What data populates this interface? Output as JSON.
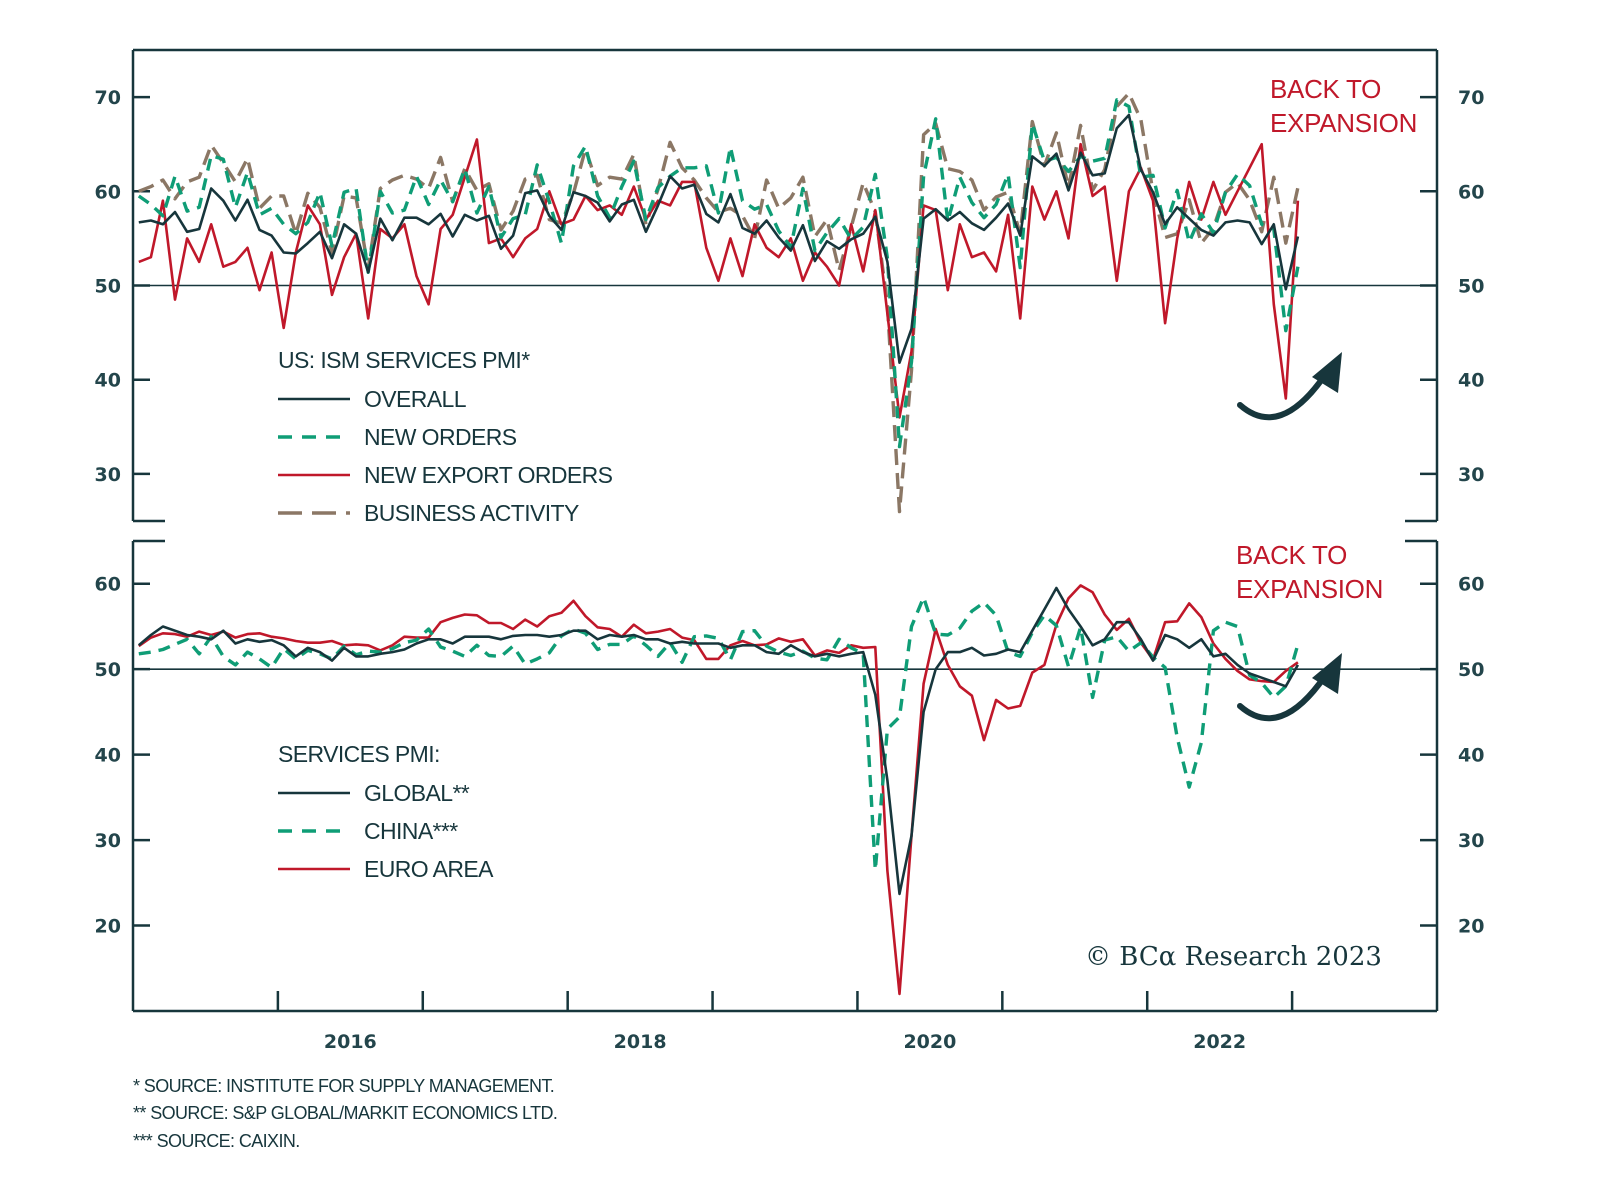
{
  "dates": [
    "2015-01",
    "2015-02",
    "2015-03",
    "2015-04",
    "2015-05",
    "2015-06",
    "2015-07",
    "2015-08",
    "2015-09",
    "2015-10",
    "2015-11",
    "2015-12",
    "2016-01",
    "2016-02",
    "2016-03",
    "2016-04",
    "2016-05",
    "2016-06",
    "2016-07",
    "2016-08",
    "2016-09",
    "2016-10",
    "2016-11",
    "2016-12",
    "2017-01",
    "2017-02",
    "2017-03",
    "2017-04",
    "2017-05",
    "2017-06",
    "2017-07",
    "2017-08",
    "2017-09",
    "2017-10",
    "2017-11",
    "2017-12",
    "2018-01",
    "2018-02",
    "2018-03",
    "2018-04",
    "2018-05",
    "2018-06",
    "2018-07",
    "2018-08",
    "2018-09",
    "2018-10",
    "2018-11",
    "2018-12",
    "2019-01",
    "2019-02",
    "2019-03",
    "2019-04",
    "2019-05",
    "2019-06",
    "2019-07",
    "2019-08",
    "2019-09",
    "2019-10",
    "2019-11",
    "2019-12",
    "2020-01",
    "2020-02",
    "2020-03",
    "2020-04",
    "2020-05",
    "2020-06",
    "2020-07",
    "2020-08",
    "2020-09",
    "2020-10",
    "2020-11",
    "2020-12",
    "2021-01",
    "2021-02",
    "2021-03",
    "2021-04",
    "2021-05",
    "2021-06",
    "2021-07",
    "2021-08",
    "2021-09",
    "2021-10",
    "2021-11",
    "2021-12",
    "2022-01",
    "2022-02",
    "2022-03",
    "2022-04",
    "2022-05",
    "2022-06",
    "2022-07",
    "2022-08",
    "2022-09",
    "2022-10",
    "2022-11",
    "2022-12",
    "2023-01"
  ],
  "colors": {
    "axis": "#17363c",
    "overall": "#17363c",
    "green": "#0f9d76",
    "red": "#c0182a",
    "brown": "#8b7765"
  },
  "x_axis": {
    "range": [
      2015,
      2024
    ],
    "tick_labels": [
      "2016",
      "2018",
      "2020",
      "2022"
    ]
  },
  "chart_data": [
    {
      "type": "line",
      "title": "US: ISM SERVICES PMI*",
      "ylim": [
        25,
        75
      ],
      "yticks": [
        30,
        40,
        50,
        60,
        70
      ],
      "reference_line": 50,
      "annotation": [
        "BACK TO",
        "EXPANSION"
      ],
      "legend_placement": "bottom-left",
      "series": [
        {
          "name": "OVERALL",
          "style": "solid",
          "color": "#17363c",
          "values": [
            56.7,
            56.9,
            56.5,
            57.8,
            55.7,
            56.0,
            60.3,
            59.0,
            56.9,
            59.1,
            55.9,
            55.3,
            53.5,
            53.4,
            54.5,
            55.7,
            52.9,
            56.5,
            55.5,
            51.4,
            57.1,
            54.8,
            57.2,
            57.2,
            56.5,
            57.6,
            55.2,
            57.5,
            56.9,
            57.4,
            53.9,
            55.3,
            59.8,
            60.1,
            57.4,
            55.9,
            59.9,
            59.5,
            58.8,
            56.8,
            58.6,
            59.1,
            55.7,
            58.5,
            61.6,
            60.3,
            60.7,
            57.6,
            56.7,
            59.7,
            56.1,
            55.5,
            56.9,
            55.1,
            53.7,
            56.4,
            52.6,
            54.7,
            53.9,
            54.9,
            55.5,
            57.3,
            52.5,
            41.8,
            45.4,
            57.1,
            58.1,
            56.9,
            57.8,
            56.6,
            55.9,
            57.2,
            58.7,
            55.3,
            63.7,
            62.7,
            64.0,
            60.1,
            64.1,
            61.7,
            61.9,
            66.7,
            68.1,
            62.3,
            59.9,
            56.5,
            58.3,
            57.1,
            55.9,
            55.3,
            56.7,
            56.9,
            56.7,
            54.4,
            56.5,
            49.6,
            55.2
          ]
        },
        {
          "name": "NEW ORDERS",
          "style": "dashed",
          "color": "#0f9d76",
          "values": [
            59.5,
            58.6,
            57.4,
            61.6,
            57.9,
            58.3,
            63.8,
            63.4,
            58.3,
            62.0,
            57.5,
            58.2,
            56.5,
            55.5,
            56.7,
            59.9,
            54.2,
            59.9,
            60.3,
            51.4,
            60.0,
            57.7,
            58.0,
            61.6,
            58.6,
            61.2,
            58.9,
            62.4,
            57.7,
            60.5,
            55.1,
            57.1,
            57.5,
            62.8,
            58.9,
            54.5,
            62.7,
            64.8,
            59.5,
            57.2,
            60.5,
            63.2,
            57.0,
            60.4,
            61.6,
            62.5,
            62.5,
            62.7,
            57.7,
            64.7,
            59.0,
            58.1,
            58.6,
            55.8,
            54.1,
            60.3,
            53.7,
            55.6,
            57.1,
            54.9,
            56.2,
            61.8,
            52.9,
            32.9,
            41.9,
            61.6,
            67.7,
            56.8,
            61.5,
            58.8,
            57.2,
            58.6,
            61.8,
            51.9,
            67.2,
            63.2,
            63.6,
            62.1,
            63.7,
            63.2,
            63.5,
            69.7,
            69.0,
            61.5,
            61.7,
            56.1,
            60.1,
            54.6,
            57.6,
            55.6,
            59.9,
            61.8,
            60.6,
            56.5,
            56.0,
            45.2,
            52.0
          ]
        },
        {
          "name": "NEW EXPORT ORDERS",
          "style": "solid",
          "color": "#c0182a",
          "values": [
            52.5,
            53.0,
            59.0,
            48.5,
            55.0,
            52.5,
            56.5,
            52.0,
            52.5,
            54.0,
            49.5,
            53.5,
            45.5,
            53.5,
            58.5,
            56.5,
            49.0,
            53.0,
            55.5,
            46.5,
            56.0,
            55.0,
            56.5,
            51.0,
            48.0,
            56.0,
            57.5,
            61.5,
            65.5,
            54.5,
            55.0,
            53.0,
            55.0,
            56.0,
            60.0,
            56.5,
            57.0,
            59.5,
            58.0,
            58.5,
            57.5,
            60.5,
            57.0,
            59.0,
            58.5,
            61.0,
            61.0,
            54.0,
            50.5,
            55.0,
            51.0,
            56.5,
            54.0,
            53.0,
            55.0,
            50.5,
            53.5,
            52.0,
            50.0,
            56.5,
            51.5,
            58.0,
            47.0,
            36.0,
            43.0,
            58.5,
            58.0,
            49.5,
            56.5,
            53.0,
            53.5,
            51.5,
            57.5,
            46.5,
            60.5,
            57.0,
            60.0,
            55.0,
            65.0,
            59.5,
            60.5,
            50.5,
            60.0,
            62.5,
            59.0,
            46.0,
            55.0,
            61.0,
            57.0,
            61.0,
            57.5,
            60.0,
            62.5,
            65.0,
            48.0,
            38.0,
            59.0
          ]
        },
        {
          "name": "BUSINESS ACTIVITY",
          "style": "dashed",
          "color": "#8b7765",
          "values": [
            60.0,
            60.5,
            61.2,
            59.2,
            61.0,
            61.5,
            64.9,
            63.0,
            61.0,
            63.5,
            58.2,
            59.5,
            59.5,
            55.5,
            59.8,
            58.3,
            53.5,
            59.5,
            59.3,
            51.8,
            60.3,
            61.2,
            61.7,
            61.3,
            60.3,
            63.6,
            58.9,
            62.4,
            60.1,
            60.8,
            55.9,
            57.9,
            61.3,
            61.7,
            57.0,
            56.6,
            59.8,
            64.5,
            60.6,
            61.5,
            61.3,
            63.9,
            56.5,
            60.2,
            65.2,
            62.5,
            61.2,
            59.3,
            57.8,
            58.2,
            57.4,
            55.0,
            61.2,
            58.2,
            59.3,
            61.5,
            55.2,
            57.0,
            51.6,
            56.2,
            60.9,
            57.8,
            48.0,
            26.0,
            41.0,
            66.0,
            67.2,
            62.4,
            62.1,
            61.2,
            58.0,
            59.4,
            59.9,
            55.5,
            67.4,
            62.7,
            66.2,
            60.4,
            67.0,
            60.1,
            62.3,
            69.0,
            70.4,
            67.6,
            59.9,
            55.1,
            55.5,
            59.1,
            54.5,
            56.1,
            59.9,
            60.9,
            59.1,
            55.7,
            61.5,
            54.5,
            60.4
          ]
        }
      ]
    },
    {
      "type": "line",
      "title": "SERVICES PMI:",
      "ylim": [
        10,
        65
      ],
      "yticks": [
        20,
        30,
        40,
        50,
        60
      ],
      "reference_line": 50,
      "annotation": [
        "BACK TO",
        "EXPANSION"
      ],
      "legend_placement": "bottom-left",
      "series": [
        {
          "name": "GLOBAL**",
          "style": "solid",
          "color": "#17363c",
          "values": [
            52.8,
            54.0,
            55.0,
            54.5,
            54.0,
            53.8,
            53.5,
            54.5,
            53.0,
            53.5,
            53.2,
            53.4,
            52.8,
            51.5,
            52.5,
            52.0,
            51.0,
            52.5,
            51.5,
            51.5,
            51.8,
            52.0,
            52.3,
            53.0,
            53.5,
            53.5,
            53.0,
            53.8,
            53.8,
            53.8,
            53.5,
            53.9,
            54.0,
            54.0,
            53.8,
            54.0,
            54.5,
            54.5,
            53.5,
            54.0,
            53.8,
            54.0,
            53.5,
            53.5,
            53.0,
            53.2,
            53.0,
            53.0,
            53.0,
            52.5,
            52.8,
            52.8,
            52.0,
            51.8,
            52.8,
            52.0,
            51.5,
            51.8,
            51.5,
            51.8,
            52.0,
            47.0,
            37.0,
            23.7,
            30.5,
            45.0,
            50.0,
            52.0,
            52.0,
            52.5,
            51.6,
            51.8,
            52.3,
            52.0,
            54.5,
            57.0,
            59.5,
            57.0,
            55.0,
            52.8,
            53.5,
            55.5,
            55.5,
            53.5,
            51.0,
            54.0,
            53.5,
            52.5,
            53.5,
            51.5,
            51.8,
            50.5,
            49.5,
            49.0,
            48.5,
            48.0,
            50.5
          ]
        },
        {
          "name": "CHINA***",
          "style": "dashed",
          "color": "#0f9d76",
          "values": [
            51.8,
            52.0,
            52.3,
            52.9,
            53.5,
            51.8,
            53.8,
            51.5,
            50.5,
            52.0,
            51.2,
            50.2,
            52.4,
            51.2,
            52.2,
            51.8,
            51.2,
            52.7,
            51.7,
            52.1,
            52.0,
            52.4,
            53.1,
            53.4,
            54.7,
            52.6,
            52.1,
            51.5,
            52.8,
            51.6,
            51.5,
            52.7,
            50.6,
            51.2,
            51.9,
            53.9,
            54.7,
            54.2,
            52.3,
            52.9,
            52.9,
            53.9,
            52.8,
            51.5,
            53.1,
            50.8,
            53.8,
            53.9,
            53.6,
            51.1,
            54.4,
            54.5,
            52.7,
            52.0,
            51.6,
            52.1,
            51.3,
            51.1,
            53.5,
            52.5,
            51.8,
            26.5,
            43.0,
            44.4,
            55.0,
            58.4,
            54.1,
            54.0,
            54.8,
            56.8,
            57.8,
            56.3,
            52.0,
            51.5,
            54.3,
            56.3,
            55.1,
            50.3,
            54.9,
            46.7,
            53.4,
            53.8,
            52.1,
            53.1,
            51.4,
            50.2,
            42.0,
            36.2,
            41.4,
            54.5,
            55.5,
            55.0,
            49.3,
            48.4,
            46.7,
            48.0,
            52.9
          ]
        },
        {
          "name": "EURO AREA",
          "style": "solid",
          "color": "#c0182a",
          "values": [
            52.7,
            53.7,
            54.2,
            54.1,
            53.8,
            54.4,
            54.0,
            54.4,
            53.7,
            54.1,
            54.2,
            53.8,
            53.6,
            53.3,
            53.1,
            53.1,
            53.3,
            52.8,
            52.9,
            52.8,
            52.2,
            52.8,
            53.8,
            53.7,
            53.7,
            55.5,
            56.0,
            56.4,
            56.3,
            55.4,
            55.4,
            54.7,
            55.8,
            55.0,
            56.2,
            56.6,
            58.0,
            56.2,
            54.9,
            54.7,
            53.8,
            55.2,
            54.2,
            54.4,
            54.7,
            53.7,
            53.4,
            51.2,
            51.2,
            52.8,
            53.3,
            52.8,
            52.9,
            53.6,
            53.2,
            53.5,
            51.6,
            52.2,
            51.9,
            52.8,
            52.5,
            52.6,
            26.4,
            12.0,
            30.5,
            48.3,
            54.7,
            50.5,
            48.0,
            46.9,
            41.7,
            46.4,
            45.4,
            45.7,
            49.6,
            50.5,
            55.2,
            58.3,
            59.8,
            59.0,
            56.4,
            54.6,
            55.9,
            53.1,
            51.1,
            55.5,
            55.6,
            57.7,
            56.1,
            53.0,
            51.2,
            49.8,
            48.8,
            48.6,
            48.5,
            49.8,
            50.8
          ]
        }
      ]
    }
  ],
  "copyright": "© BCα Research 2023",
  "footnotes": [
    "*  SOURCE: INSTITUTE FOR SUPPLY MANAGEMENT.",
    "**  SOURCE: S&P GLOBAL/MARKIT ECONOMICS LTD.",
    "*** SOURCE: CAIXIN."
  ]
}
